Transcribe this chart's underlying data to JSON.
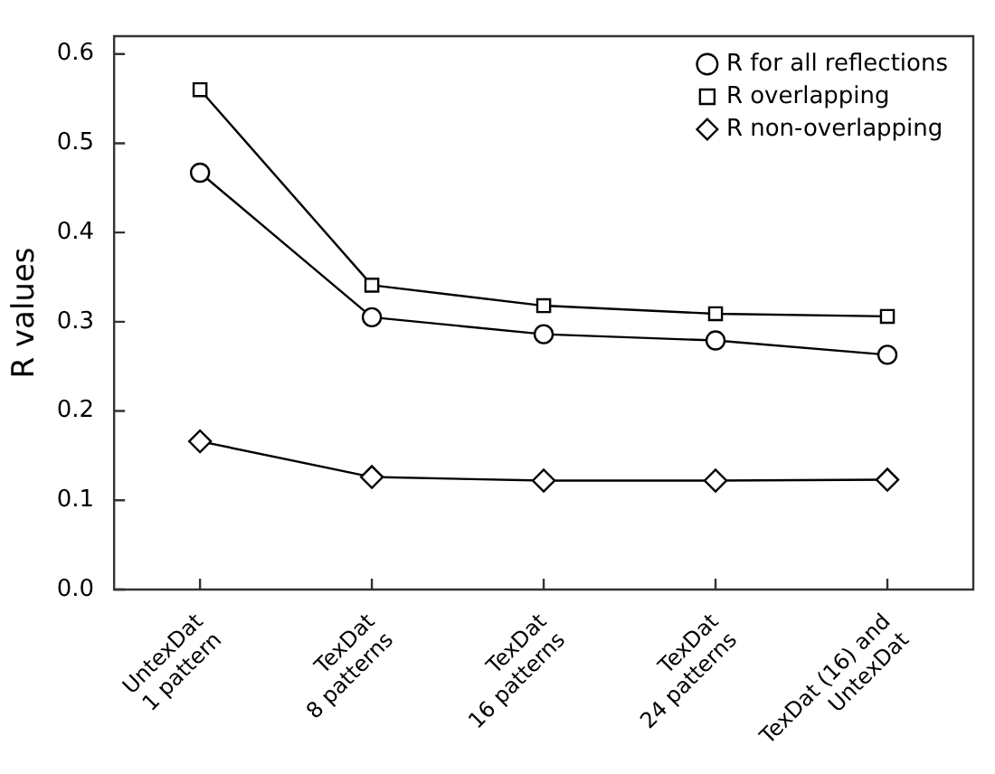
{
  "chart_data": {
    "type": "line",
    "ylabel": "R values",
    "categories": [
      "UntexDat\n1 pattern",
      "TexDat\n8 patterns",
      "TexDat\n16 patterns",
      "TexDat\n24 patterns",
      "TexDat (16) and\nUntexDat"
    ],
    "series": [
      {
        "name": "R for all reflections",
        "color": "#000000",
        "marker": "circle",
        "values": [
          0.467,
          0.305,
          0.286,
          0.279,
          0.263
        ]
      },
      {
        "name": "R overlapping",
        "color": "#000000",
        "marker": "square",
        "values": [
          0.56,
          0.341,
          0.318,
          0.309,
          0.306
        ]
      },
      {
        "name": "R non-overlapping",
        "color": "#000000",
        "marker": "diamond",
        "values": [
          0.166,
          0.126,
          0.122,
          0.122,
          0.123
        ]
      }
    ],
    "ylim": [
      0,
      0.62
    ],
    "yticks": [
      {
        "value": 0,
        "label": "0.0"
      },
      0.1,
      0.2,
      0.3,
      0.4,
      0.5,
      0.6
    ],
    "legend": "top right",
    "grid": false,
    "line_style": "solid"
  }
}
